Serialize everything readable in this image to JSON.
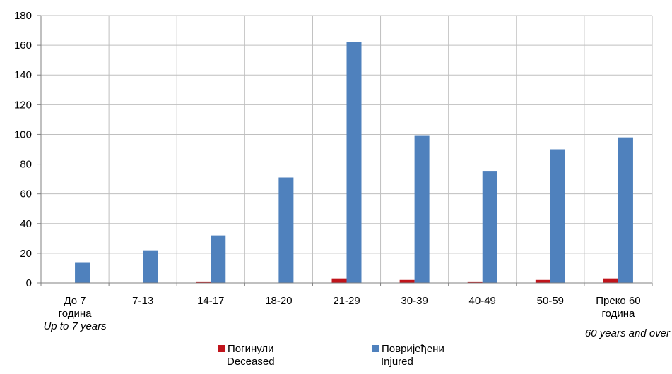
{
  "chart_data": {
    "type": "bar",
    "categories": [
      {
        "label": [
          "До 7",
          "година"
        ],
        "label_en": "Up to 7 years"
      },
      {
        "label": [
          "7-13"
        ],
        "label_en": ""
      },
      {
        "label": [
          "14-17"
        ],
        "label_en": ""
      },
      {
        "label": [
          "18-20"
        ],
        "label_en": ""
      },
      {
        "label": [
          "21-29"
        ],
        "label_en": ""
      },
      {
        "label": [
          "30-39"
        ],
        "label_en": ""
      },
      {
        "label": [
          "40-49"
        ],
        "label_en": ""
      },
      {
        "label": [
          "50-59"
        ],
        "label_en": ""
      },
      {
        "label": [
          "Преко 60",
          "година"
        ],
        "label_en": "60 years and over"
      }
    ],
    "series": [
      {
        "name": "Погинули",
        "name_en": "Deceased",
        "color": "#c0141b",
        "values": [
          0,
          0,
          1,
          0,
          3,
          2,
          1,
          2,
          3
        ]
      },
      {
        "name": "Повријеђени",
        "name_en": "Injured",
        "color": "#4f81bd",
        "values": [
          14,
          22,
          32,
          71,
          162,
          99,
          75,
          90,
          98
        ]
      }
    ],
    "ylim": [
      0,
      180
    ],
    "yticks": [
      0,
      20,
      40,
      60,
      80,
      100,
      120,
      140,
      160,
      180
    ],
    "grid": true,
    "legend": "bottom"
  }
}
